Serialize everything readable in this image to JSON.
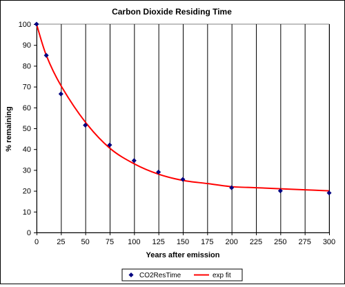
{
  "chart_data": {
    "type": "scatter",
    "title": "Carbon Dioxide Residing Time",
    "xlabel": "Years after emission",
    "ylabel": "% remaining",
    "xlim": [
      0,
      300
    ],
    "ylim": [
      0,
      100
    ],
    "xticks": [
      0,
      25,
      50,
      75,
      100,
      125,
      150,
      175,
      200,
      225,
      250,
      275,
      300
    ],
    "yticks": [
      0,
      10,
      20,
      30,
      40,
      50,
      60,
      70,
      80,
      90,
      100
    ],
    "grid": "vertical",
    "legend_position": "bottom",
    "series": [
      {
        "name": "CO2ResTime",
        "kind": "markers",
        "color": "#000080",
        "x": [
          0,
          10,
          25,
          50,
          75,
          100,
          125,
          150,
          200,
          250,
          300
        ],
        "y": [
          100,
          85,
          66.5,
          51.5,
          42,
          34.5,
          29,
          25.5,
          21.5,
          20,
          19
        ]
      },
      {
        "name": "exp fit",
        "kind": "line",
        "color": "#ff0000",
        "x": [
          0,
          10,
          25,
          50,
          75,
          100,
          125,
          150,
          175,
          200,
          225,
          250,
          275,
          300
        ],
        "y": [
          100,
          85,
          70.5,
          53,
          40.5,
          33,
          28,
          25,
          23.5,
          22,
          21.5,
          21,
          20.5,
          20
        ]
      }
    ]
  }
}
